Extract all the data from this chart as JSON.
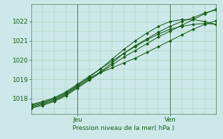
{
  "title": "",
  "xlabel": "Pression niveau de la mer( hPa )",
  "ylabel": "",
  "bg_color": "#cce8e8",
  "line_color": "#1a5c1a",
  "grid_color": "#99ccaa",
  "tick_label_color": "#1a5c1a",
  "ylim": [
    1017.2,
    1022.9
  ],
  "xlim": [
    0,
    48
  ],
  "xtick_positions": [
    12,
    36
  ],
  "xtick_labels": [
    "Jeu",
    "Ven"
  ],
  "ytick_positions": [
    1018,
    1019,
    1020,
    1021,
    1022
  ],
  "vline_positions": [
    12,
    36
  ],
  "series": [
    {
      "x": [
        0,
        3,
        6,
        9,
        12,
        15,
        18,
        21,
        24,
        27,
        30,
        33,
        36,
        39,
        42,
        45,
        48
      ],
      "y": [
        1017.65,
        1017.8,
        1018.0,
        1018.3,
        1018.7,
        1019.05,
        1019.35,
        1019.6,
        1019.85,
        1020.1,
        1020.4,
        1020.7,
        1021.0,
        1021.3,
        1021.6,
        1021.85,
        1022.05
      ]
    },
    {
      "x": [
        0,
        3,
        6,
        9,
        12,
        15,
        18,
        21,
        24,
        27,
        30,
        33,
        36,
        39,
        42,
        45,
        48
      ],
      "y": [
        1017.7,
        1017.85,
        1018.05,
        1018.35,
        1018.75,
        1019.15,
        1019.55,
        1019.95,
        1020.35,
        1020.7,
        1021.05,
        1021.35,
        1021.6,
        1021.75,
        1021.85,
        1021.9,
        1021.85
      ]
    },
    {
      "x": [
        0,
        3,
        6,
        9,
        12,
        15,
        18,
        21,
        24,
        27,
        30,
        33,
        36,
        39,
        42,
        45,
        48
      ],
      "y": [
        1017.6,
        1017.75,
        1017.95,
        1018.25,
        1018.65,
        1019.1,
        1019.55,
        1020.05,
        1020.55,
        1021.0,
        1021.4,
        1021.75,
        1022.0,
        1022.1,
        1022.1,
        1022.0,
        1021.85
      ]
    },
    {
      "x": [
        0,
        3,
        6,
        9,
        12,
        15,
        18,
        21,
        24,
        27,
        30,
        33,
        36,
        39,
        42,
        45,
        48
      ],
      "y": [
        1017.55,
        1017.7,
        1017.9,
        1018.2,
        1018.6,
        1019.0,
        1019.4,
        1019.85,
        1020.35,
        1020.75,
        1021.1,
        1021.45,
        1021.75,
        1022.0,
        1022.2,
        1022.45,
        1022.6
      ]
    },
    {
      "x": [
        0,
        3,
        6,
        9,
        12,
        15,
        18,
        21,
        24,
        27,
        30,
        33,
        36,
        39,
        42,
        45,
        48
      ],
      "y": [
        1017.5,
        1017.65,
        1017.85,
        1018.15,
        1018.55,
        1018.95,
        1019.35,
        1019.75,
        1020.15,
        1020.5,
        1020.85,
        1021.2,
        1021.5,
        1021.8,
        1022.1,
        1022.4,
        1022.65
      ]
    }
  ]
}
